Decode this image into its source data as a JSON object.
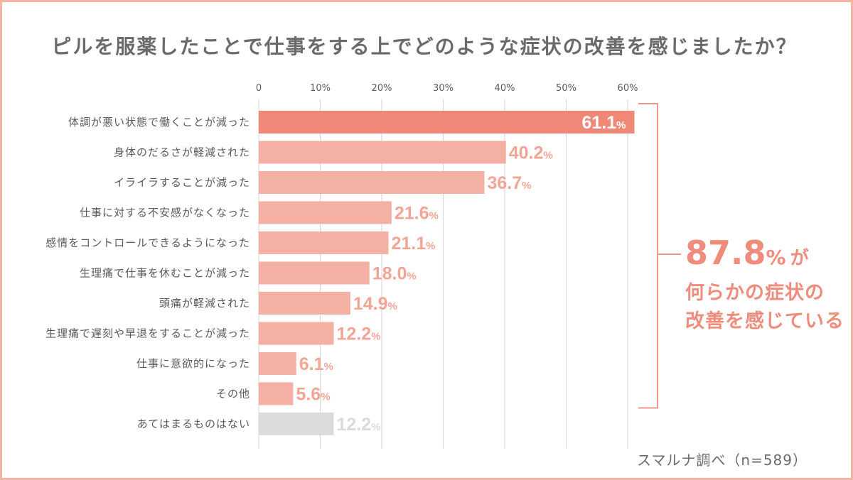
{
  "title": "ピルを服薬したことで仕事をする上でどのような症状の改善を感じましたか？",
  "source": "スマルナ調べ（n=589）",
  "callout": {
    "value": "87.8",
    "unit": "%",
    "suffix": "が",
    "line2": "何らかの症状の",
    "line3": "改善を感じている",
    "color": "#ef8c7c"
  },
  "colors": {
    "top": "#f08878",
    "bar": "#f4b1a3",
    "none": "#dedbdb",
    "label_main": "#ffffff",
    "label": "#f3a595",
    "label_none": "#dcdada",
    "text": "#5a5a5a",
    "grid": "#d6d6d6",
    "bracket": "#ef9a89"
  },
  "chart_data": {
    "type": "bar",
    "orientation": "horizontal",
    "categories": [
      "体調が悪い状態で働くことが減った",
      "身体のだるさが軽減された",
      "イライラすることが減った",
      "仕事に対する不安感がなくなった",
      "感情をコントロールできるようになった",
      "生理痛で仕事を休むことが減った",
      "頭痛が軽減された",
      "生理痛で遅刻や早退をすることが減った",
      "仕事に意欲的になった",
      "その他",
      "あてはまるものはない"
    ],
    "values": [
      61.1,
      40.2,
      36.7,
      21.6,
      21.1,
      18.0,
      14.9,
      12.2,
      6.1,
      5.6,
      12.2
    ],
    "value_labels": [
      "61.1",
      "40.2",
      "36.7",
      "21.6",
      "21.1",
      "18.0",
      "14.9",
      "12.2",
      "6.1",
      "5.6",
      "12.2"
    ],
    "unit": "%",
    "xticks": [
      "0",
      "10%",
      "20%",
      "30%",
      "40%",
      "50%",
      "60%"
    ],
    "xlim": [
      0,
      60
    ],
    "grid": true,
    "legend": "none"
  }
}
